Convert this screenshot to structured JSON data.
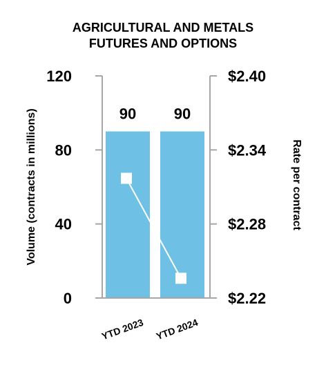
{
  "chart_data": {
    "type": "bar+line",
    "title_lines": [
      "AGRICULTURAL AND METALS",
      "FUTURES AND OPTIONS"
    ],
    "categories": [
      "YTD 2023",
      "YTD 2024"
    ],
    "bar_series": {
      "axis": "left",
      "values": [
        90,
        90
      ],
      "data_labels": [
        "90",
        "90"
      ],
      "color": "#6EC1E4"
    },
    "line_series": {
      "axis": "right",
      "values": [
        2.317,
        2.236
      ],
      "color": "#ffffff"
    },
    "left_axis": {
      "label": "Volume (contracts in millions)",
      "ylim": [
        0,
        120
      ],
      "ticks": [
        "0",
        "40",
        "80",
        "120"
      ],
      "tick_values": [
        0,
        40,
        80,
        120
      ]
    },
    "right_axis": {
      "label": "Rate per contract",
      "ylim": [
        2.22,
        2.4
      ],
      "ticks": [
        "$2.22",
        "$2.28",
        "$2.34",
        "$2.40"
      ],
      "tick_values": [
        2.22,
        2.28,
        2.34,
        2.4
      ]
    },
    "axis_color": "#a6a6a6",
    "grid": false,
    "legend": "none"
  }
}
